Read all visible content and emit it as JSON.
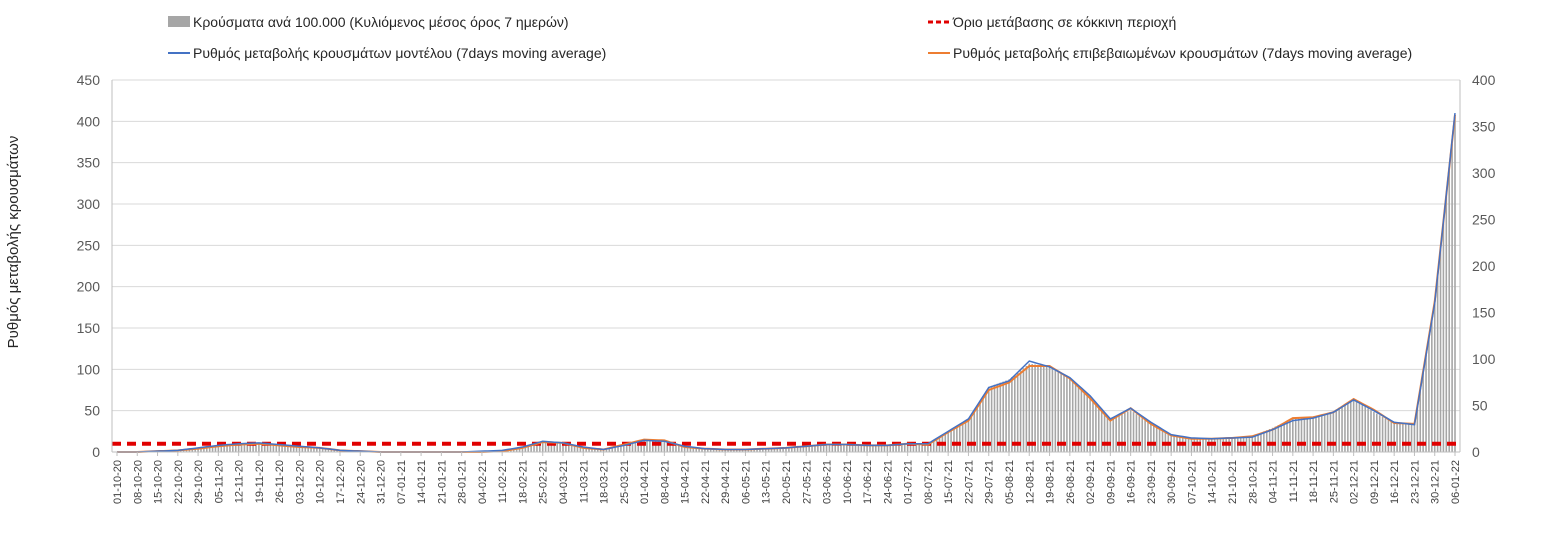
{
  "chart_data": {
    "type": "bar+line",
    "y_left": {
      "label": "Ρυθμός μεταβολής κρουσμάτων",
      "range": [
        0,
        450
      ],
      "ticks": [
        0,
        50,
        100,
        150,
        200,
        250,
        300,
        350,
        400,
        450
      ]
    },
    "y_right": {
      "range": [
        0,
        400
      ],
      "ticks": [
        0,
        50,
        100,
        150,
        200,
        250,
        300,
        350,
        400
      ]
    },
    "x_tick_labels": [
      "01-10-20",
      "08-10-20",
      "15-10-20",
      "22-10-20",
      "29-10-20",
      "05-11-20",
      "12-11-20",
      "19-11-20",
      "26-11-20",
      "03-12-20",
      "10-12-20",
      "17-12-20",
      "24-12-20",
      "31-12-20",
      "07-01-21",
      "14-01-21",
      "21-01-21",
      "28-01-21",
      "04-02-21",
      "11-02-21",
      "18-02-21",
      "25-02-21",
      "04-03-21",
      "11-03-21",
      "18-03-21",
      "25-03-21",
      "01-04-21",
      "08-04-21",
      "15-04-21",
      "22-04-21",
      "29-04-21",
      "06-05-21",
      "13-05-21",
      "20-05-21",
      "27-05-21",
      "03-06-21",
      "10-06-21",
      "17-06-21",
      "24-06-21",
      "01-07-21",
      "08-07-21",
      "15-07-21",
      "22-07-21",
      "29-07-21",
      "05-08-21",
      "12-08-21",
      "19-08-21",
      "26-08-21",
      "02-09-21",
      "09-09-21",
      "16-09-21",
      "23-09-21",
      "30-09-21",
      "07-10-21",
      "14-10-21",
      "21-10-21",
      "28-10-21",
      "04-11-21",
      "11-11-21",
      "18-11-21",
      "25-11-21",
      "02-12-21",
      "09-12-21",
      "16-12-21",
      "23-12-21",
      "30-12-21",
      "06-01-22"
    ],
    "weekly_values": {
      "cases_per_100k": [
        0,
        0,
        1,
        2,
        4,
        7,
        9,
        10,
        8,
        6,
        5,
        2,
        1,
        0,
        0,
        0,
        0,
        0,
        0,
        1,
        4,
        11,
        10,
        5,
        3,
        8,
        13,
        12,
        6,
        4,
        3,
        3,
        4,
        5,
        7,
        9,
        8,
        7,
        8,
        10,
        9,
        22,
        35,
        70,
        78,
        95,
        92,
        80,
        60,
        35,
        45,
        30,
        18,
        15,
        15,
        16,
        17,
        26,
        36,
        37,
        44,
        57,
        43,
        31,
        30,
        160,
        360
      ],
      "model_rate": [
        0,
        0,
        1,
        2,
        5,
        8,
        10,
        11,
        9,
        7,
        5,
        2,
        1,
        0,
        0,
        0,
        0,
        0,
        1,
        2,
        6,
        13,
        11,
        6,
        3,
        8,
        14,
        13,
        7,
        4,
        3,
        3,
        4,
        5,
        7,
        9,
        9,
        8,
        8,
        10,
        10,
        25,
        40,
        78,
        86,
        110,
        103,
        90,
        68,
        40,
        53,
        36,
        21,
        17,
        16,
        17,
        18,
        27,
        38,
        41,
        48,
        63,
        50,
        36,
        33,
        180,
        410
      ],
      "confirmed_rate": [
        0,
        0,
        1,
        2,
        4,
        7,
        9,
        10,
        8,
        6,
        5,
        2,
        1,
        0,
        0,
        0,
        0,
        0,
        0,
        1,
        5,
        12,
        11,
        5,
        3,
        9,
        15,
        14,
        6,
        4,
        3,
        3,
        4,
        5,
        7,
        9,
        9,
        8,
        8,
        10,
        9,
        24,
        38,
        75,
        84,
        104,
        104,
        89,
        65,
        38,
        53,
        34,
        20,
        16,
        16,
        17,
        19,
        27,
        41,
        42,
        48,
        64,
        51,
        35,
        34,
        182,
        408
      ],
      "red_zone_threshold": 10
    },
    "legend": [
      {
        "label": "Κρούσματα ανά 100.000 (Κυλιόμενος μέσος όρος 7 ημερών)",
        "color": "#a6a6a6",
        "symbol": "bar"
      },
      {
        "label": "Όριο μετάβασης σε κόκκινη περιοχή",
        "color": "#e00000",
        "symbol": "dash"
      },
      {
        "label": "Ρυθμός μεταβολής κρουσμάτων μοντέλου (7days moving average)",
        "color": "#4472c4",
        "symbol": "line"
      },
      {
        "label": "Ρυθμός μεταβολής επιβεβαιωμένων κρουσμάτων (7days moving average)",
        "color": "#ed7d31",
        "symbol": "line"
      }
    ],
    "grid": true,
    "legend_position": "top"
  },
  "colors": {
    "bars": "#a6a6a6",
    "threshold": "#e00000",
    "model_line": "#4472c4",
    "confirmed_line": "#ed7d31",
    "grid": "#d9d9d9",
    "axis": "#bfbfbf"
  }
}
